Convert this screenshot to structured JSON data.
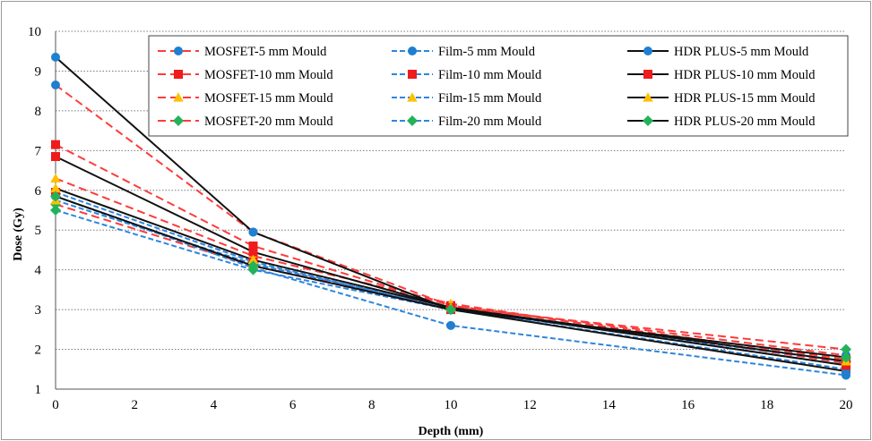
{
  "chart_data": {
    "type": "line",
    "title": "",
    "xlabel": "Depth (mm)",
    "ylabel": "Dose (Gy)",
    "xlim": [
      0,
      20
    ],
    "ylim": [
      1,
      10
    ],
    "xticks": [
      0,
      2,
      4,
      6,
      8,
      10,
      12,
      14,
      16,
      18,
      20
    ],
    "yticks": [
      1,
      2,
      3,
      4,
      5,
      6,
      7,
      8,
      9,
      10
    ],
    "grid": "horizontal dotted",
    "legend_position": "top-right",
    "x": [
      0,
      5,
      10,
      20
    ],
    "series": [
      {
        "name": "MOSFET-5 mm Mould",
        "values": [
          8.65,
          4.95,
          3.1,
          1.85
        ],
        "color": "#ff3b3b",
        "dash": "dashed",
        "marker": "circle",
        "marker_color": "#1f7fd0"
      },
      {
        "name": "MOSFET-10 mm Mould",
        "values": [
          7.15,
          4.6,
          3.1,
          1.75
        ],
        "color": "#ff3b3b",
        "dash": "dashed",
        "marker": "square",
        "marker_color": "#ee1c1c"
      },
      {
        "name": "MOSFET-15 mm Mould",
        "values": [
          6.3,
          4.35,
          3.15,
          1.65
        ],
        "color": "#ff3b3b",
        "dash": "dashed",
        "marker": "triangle",
        "marker_color": "#ffc000"
      },
      {
        "name": "MOSFET-20 mm Mould",
        "values": [
          5.65,
          4.1,
          3.05,
          2.0
        ],
        "color": "#ff3b3b",
        "dash": "dashed",
        "marker": "diamond",
        "marker_color": "#22b35a"
      },
      {
        "name": "Film-5 mm Mould",
        "values": [
          5.85,
          4.05,
          2.6,
          1.35
        ],
        "color": "#2e86de",
        "dash": "dashed",
        "marker": "circle",
        "marker_color": "#1f7fd0"
      },
      {
        "name": "Film-10 mm Mould",
        "values": [
          5.95,
          4.2,
          3.0,
          1.5
        ],
        "color": "#2e86de",
        "dash": "dashed",
        "marker": "square",
        "marker_color": "#ee1c1c"
      },
      {
        "name": "Film-15 mm Mould",
        "values": [
          5.75,
          4.15,
          3.05,
          1.6
        ],
        "color": "#2e86de",
        "dash": "dashed",
        "marker": "triangle",
        "marker_color": "#ffc000"
      },
      {
        "name": "Film-20 mm Mould",
        "values": [
          5.5,
          4.0,
          3.0,
          1.7
        ],
        "color": "#2e86de",
        "dash": "dashed",
        "marker": "diamond",
        "marker_color": "#22b35a"
      },
      {
        "name": "HDR PLUS-5 mm Mould",
        "values": [
          9.35,
          4.95,
          3.0,
          1.45
        ],
        "color": "#111111",
        "dash": "solid",
        "marker": "circle",
        "marker_color": "#1f7fd0"
      },
      {
        "name": "HDR PLUS-10 mm Mould",
        "values": [
          6.85,
          4.45,
          3.05,
          1.6
        ],
        "color": "#111111",
        "dash": "solid",
        "marker": "square",
        "marker_color": "#ee1c1c"
      },
      {
        "name": "HDR PLUS-15 mm Mould",
        "values": [
          6.05,
          4.25,
          3.05,
          1.7
        ],
        "color": "#111111",
        "dash": "solid",
        "marker": "triangle",
        "marker_color": "#ffc000"
      },
      {
        "name": "HDR PLUS-20 mm Mould",
        "values": [
          5.85,
          4.1,
          3.0,
          1.8
        ],
        "color": "#111111",
        "dash": "solid",
        "marker": "diamond",
        "marker_color": "#22b35a"
      }
    ]
  }
}
